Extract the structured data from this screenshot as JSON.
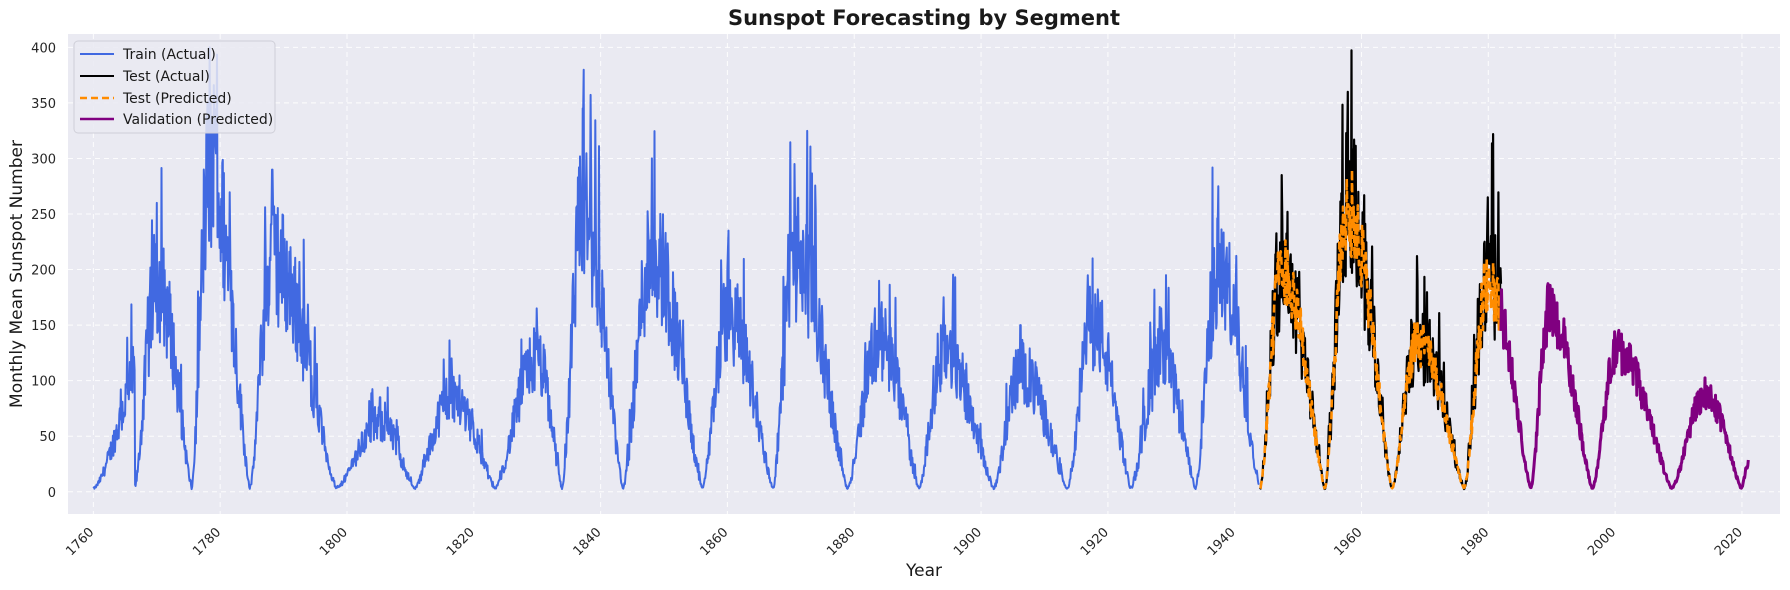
{
  "chart_data": {
    "type": "line",
    "title": "Sunspot Forecasting by Segment",
    "xlabel": "Year",
    "ylabel": "Monthly Mean Sunspot Number",
    "xlim": [
      1756,
      2026
    ],
    "ylim": [
      -20,
      412
    ],
    "x_ticks": [
      "1760",
      "1780",
      "1800",
      "1820",
      "1840",
      "1860",
      "1880",
      "1900",
      "1920",
      "1940",
      "1960",
      "1980",
      "2000",
      "2020"
    ],
    "y_ticks": [
      "0",
      "50",
      "100",
      "150",
      "200",
      "250",
      "300",
      "350",
      "400"
    ],
    "grid": true,
    "legend_position": "top-left",
    "cycles": [
      {
        "min": 1760.0,
        "max": 1769.5,
        "peak": 180
      },
      {
        "min": 1766.5,
        "max": 1770.0,
        "peak": 260
      },
      {
        "min": 1775.5,
        "max": 1778.3,
        "peak": 400
      },
      {
        "min": 1784.7,
        "max": 1788.2,
        "peak": 290
      },
      {
        "min": 1798.3,
        "max": 1805.2,
        "peak": 85
      },
      {
        "min": 1810.6,
        "max": 1816.5,
        "peak": 120
      },
      {
        "min": 1823.3,
        "max": 1829.9,
        "peak": 165
      },
      {
        "min": 1833.9,
        "max": 1837.2,
        "peak": 345
      },
      {
        "min": 1843.5,
        "max": 1848.1,
        "peak": 300
      },
      {
        "min": 1856.0,
        "max": 1860.1,
        "peak": 220
      },
      {
        "min": 1867.2,
        "max": 1870.6,
        "peak": 295
      },
      {
        "min": 1878.9,
        "max": 1883.9,
        "peak": 190
      },
      {
        "min": 1890.2,
        "max": 1894.1,
        "peak": 175
      },
      {
        "min": 1902.0,
        "max": 1906.2,
        "peak": 150
      },
      {
        "min": 1913.6,
        "max": 1917.6,
        "peak": 210
      },
      {
        "min": 1923.6,
        "max": 1928.4,
        "peak": 165
      },
      {
        "min": 1933.8,
        "max": 1937.4,
        "peak": 275
      },
      {
        "min": 1944.0,
        "max": 1947.4,
        "peak": 285
      },
      {
        "min": 1954.2,
        "max": 1957.8,
        "peak": 360
      },
      {
        "min": 1964.8,
        "max": 1968.8,
        "peak": 190
      },
      {
        "min": 1976.2,
        "max": 1979.9,
        "peak": 265
      },
      {
        "min": 1986.7,
        "max": 1989.6,
        "peak": 230
      },
      {
        "min": 1996.4,
        "max": 2000.3,
        "peak": 180
      },
      {
        "min": 2008.9,
        "max": 2014.2,
        "peak": 125
      },
      {
        "min": 2019.9,
        "max": 2021.0,
        "peak": 35
      }
    ],
    "series": [
      {
        "name": "Train (Actual)",
        "color": "#4169e1",
        "style": "solid",
        "x_range": [
          1760.0,
          1943.9
        ]
      },
      {
        "name": "Test (Actual)",
        "color": "#000000",
        "style": "solid",
        "x_range": [
          1944.0,
          1982.0
        ]
      },
      {
        "name": "Test (Predicted)",
        "color": "#ff8c00",
        "style": "dashed",
        "x_range": [
          1944.0,
          1982.0
        ]
      },
      {
        "name": "Validation (Predicted)",
        "color": "#800080",
        "style": "solid",
        "x_range": [
          1982.0,
          2021.0
        ]
      }
    ]
  }
}
